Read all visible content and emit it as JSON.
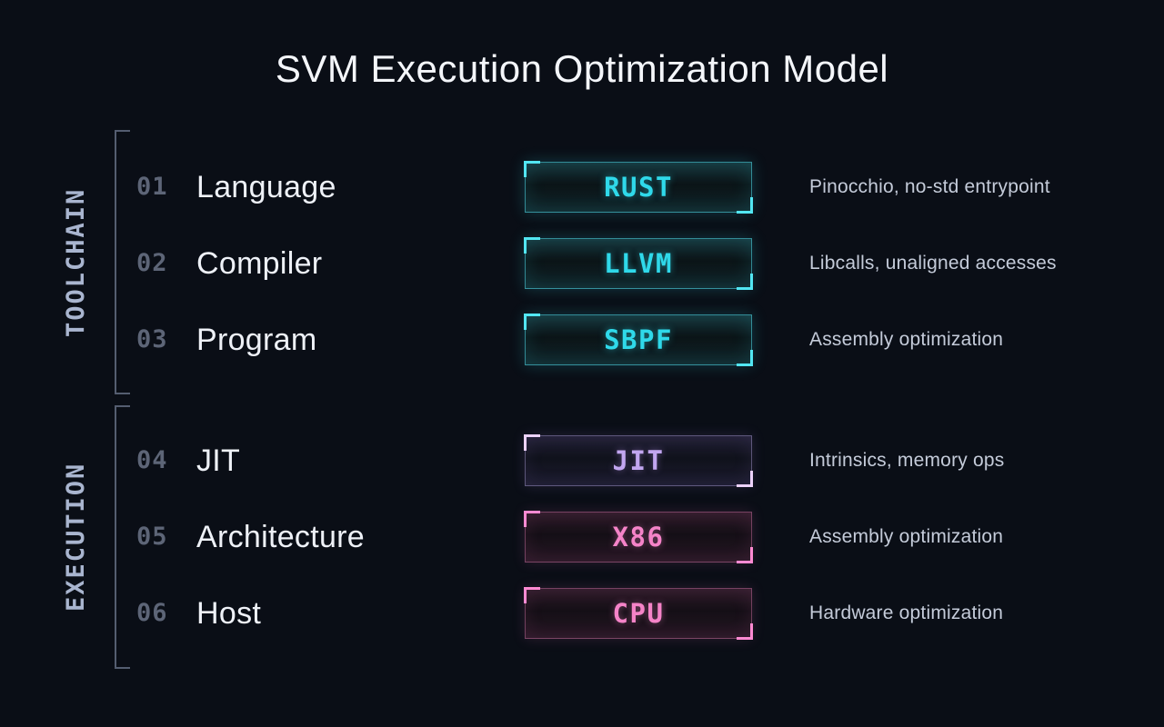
{
  "title": "SVM Execution Optimization Model",
  "colors": {
    "background": "#0a0e16",
    "title_text": "#f4f6fa",
    "section_label": "#a9b5cf",
    "bracket": "#545d70",
    "row_number": "#5d6577",
    "row_label": "#eef1f7",
    "description": "#c4cbd9",
    "cyan_accent": "#2fd9ea",
    "purple_accent": "#c2a6f0",
    "pink_accent": "#f583c8"
  },
  "sections": [
    {
      "label": "TOOLCHAIN",
      "rows": [
        {
          "number": "01",
          "label": "Language",
          "badge": "RUST",
          "theme": "cyan",
          "description": "Pinocchio, no-std entrypoint"
        },
        {
          "number": "02",
          "label": "Compiler",
          "badge": "LLVM",
          "theme": "cyan",
          "description": "Libcalls, unaligned accesses"
        },
        {
          "number": "03",
          "label": "Program",
          "badge": "SBPF",
          "theme": "cyan",
          "description": "Assembly optimization"
        }
      ]
    },
    {
      "label": "EXECUTION",
      "rows": [
        {
          "number": "04",
          "label": "JIT",
          "badge": "JIT",
          "theme": "purple",
          "description": "Intrinsics, memory ops"
        },
        {
          "number": "05",
          "label": "Architecture",
          "badge": "X86",
          "theme": "pink",
          "description": "Assembly optimization"
        },
        {
          "number": "06",
          "label": "Host",
          "badge": "CPU",
          "theme": "pink",
          "description": "Hardware optimization"
        }
      ]
    }
  ]
}
